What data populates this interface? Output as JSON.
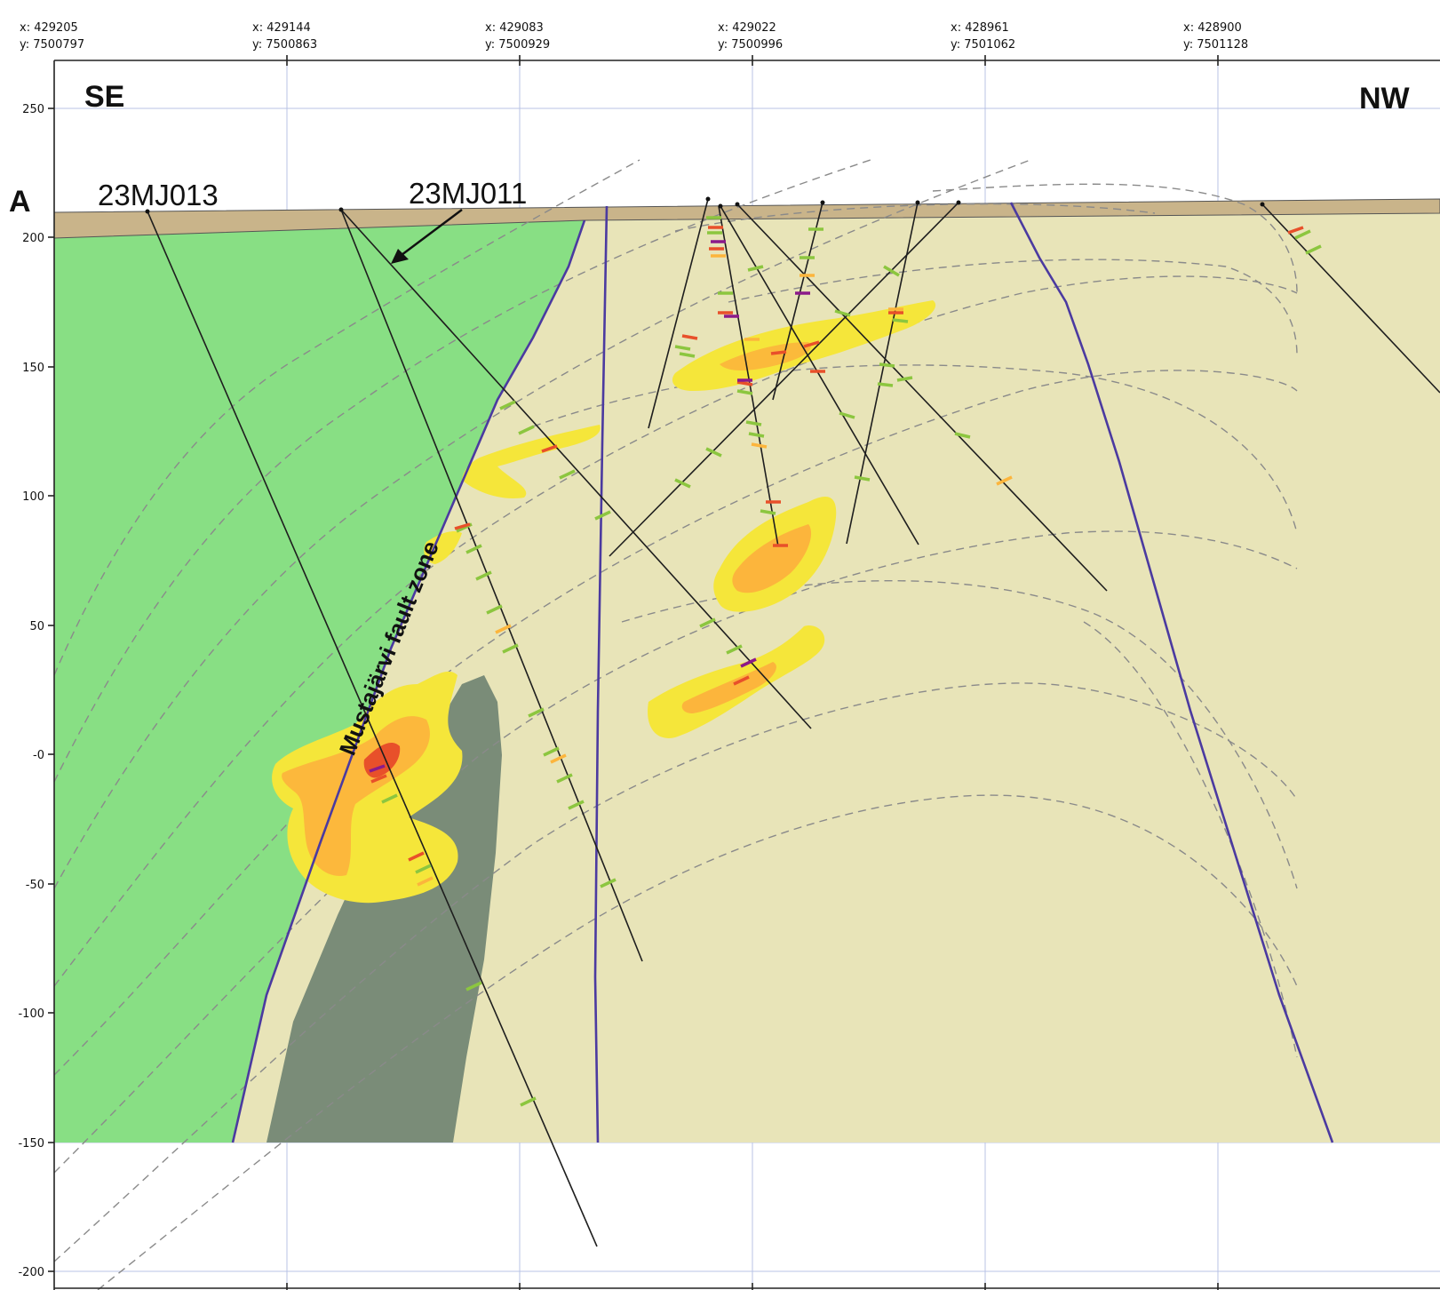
{
  "labels": {
    "se": "SE",
    "nw": "NW",
    "section": "A",
    "fault_zone": "Mustajärvi fault zone"
  },
  "drillholes": [
    "23MJ013",
    "23MJ011"
  ],
  "top_coords": [
    {
      "x": "x: 429205",
      "y": "y: 7500797"
    },
    {
      "x": "x: 429144",
      "y": "y: 7500863"
    },
    {
      "x": "x: 429083",
      "y": "y: 7500929"
    },
    {
      "x": "x: 429022",
      "y": "y: 7500996"
    },
    {
      "x": "x: 428961",
      "y": "y: 7501062"
    },
    {
      "x": "x: 428900",
      "y": "y: 7501128"
    }
  ],
  "elevations": [
    "250",
    "200",
    "150",
    "100",
    "50",
    "-0",
    "-50",
    "-100",
    "-150",
    "-200"
  ],
  "colors": {
    "greenstone": "#88df84",
    "host_rock": "#e8e4b8",
    "overburden": "#c9b48a",
    "intrusion": "#7a8c78",
    "anomaly_low": "#f5e63a",
    "anomaly_mid": "#fcb53c",
    "anomaly_high": "#e8502a",
    "fault": "#4b3aa0"
  }
}
